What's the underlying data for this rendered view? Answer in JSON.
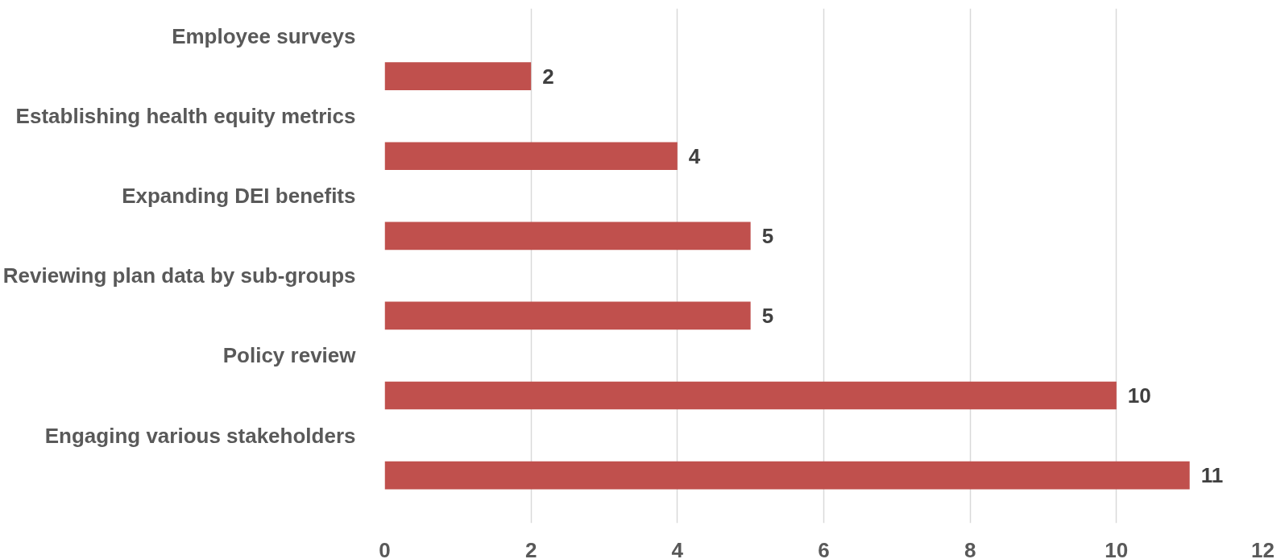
{
  "chart_data": {
    "type": "bar",
    "orientation": "horizontal",
    "categories": [
      "Employee surveys",
      "Establishing health equity metrics",
      "Expanding DEI benefits",
      "Reviewing plan data by sub-groups",
      "Policy review",
      "Engaging various stakeholders"
    ],
    "values": [
      2,
      4,
      5,
      5,
      10,
      11
    ],
    "color": "#c0504d",
    "xlim": [
      0,
      12
    ],
    "xticks": [
      0,
      2,
      4,
      6,
      8,
      10,
      12
    ],
    "grid": "x",
    "data_labels": true
  }
}
